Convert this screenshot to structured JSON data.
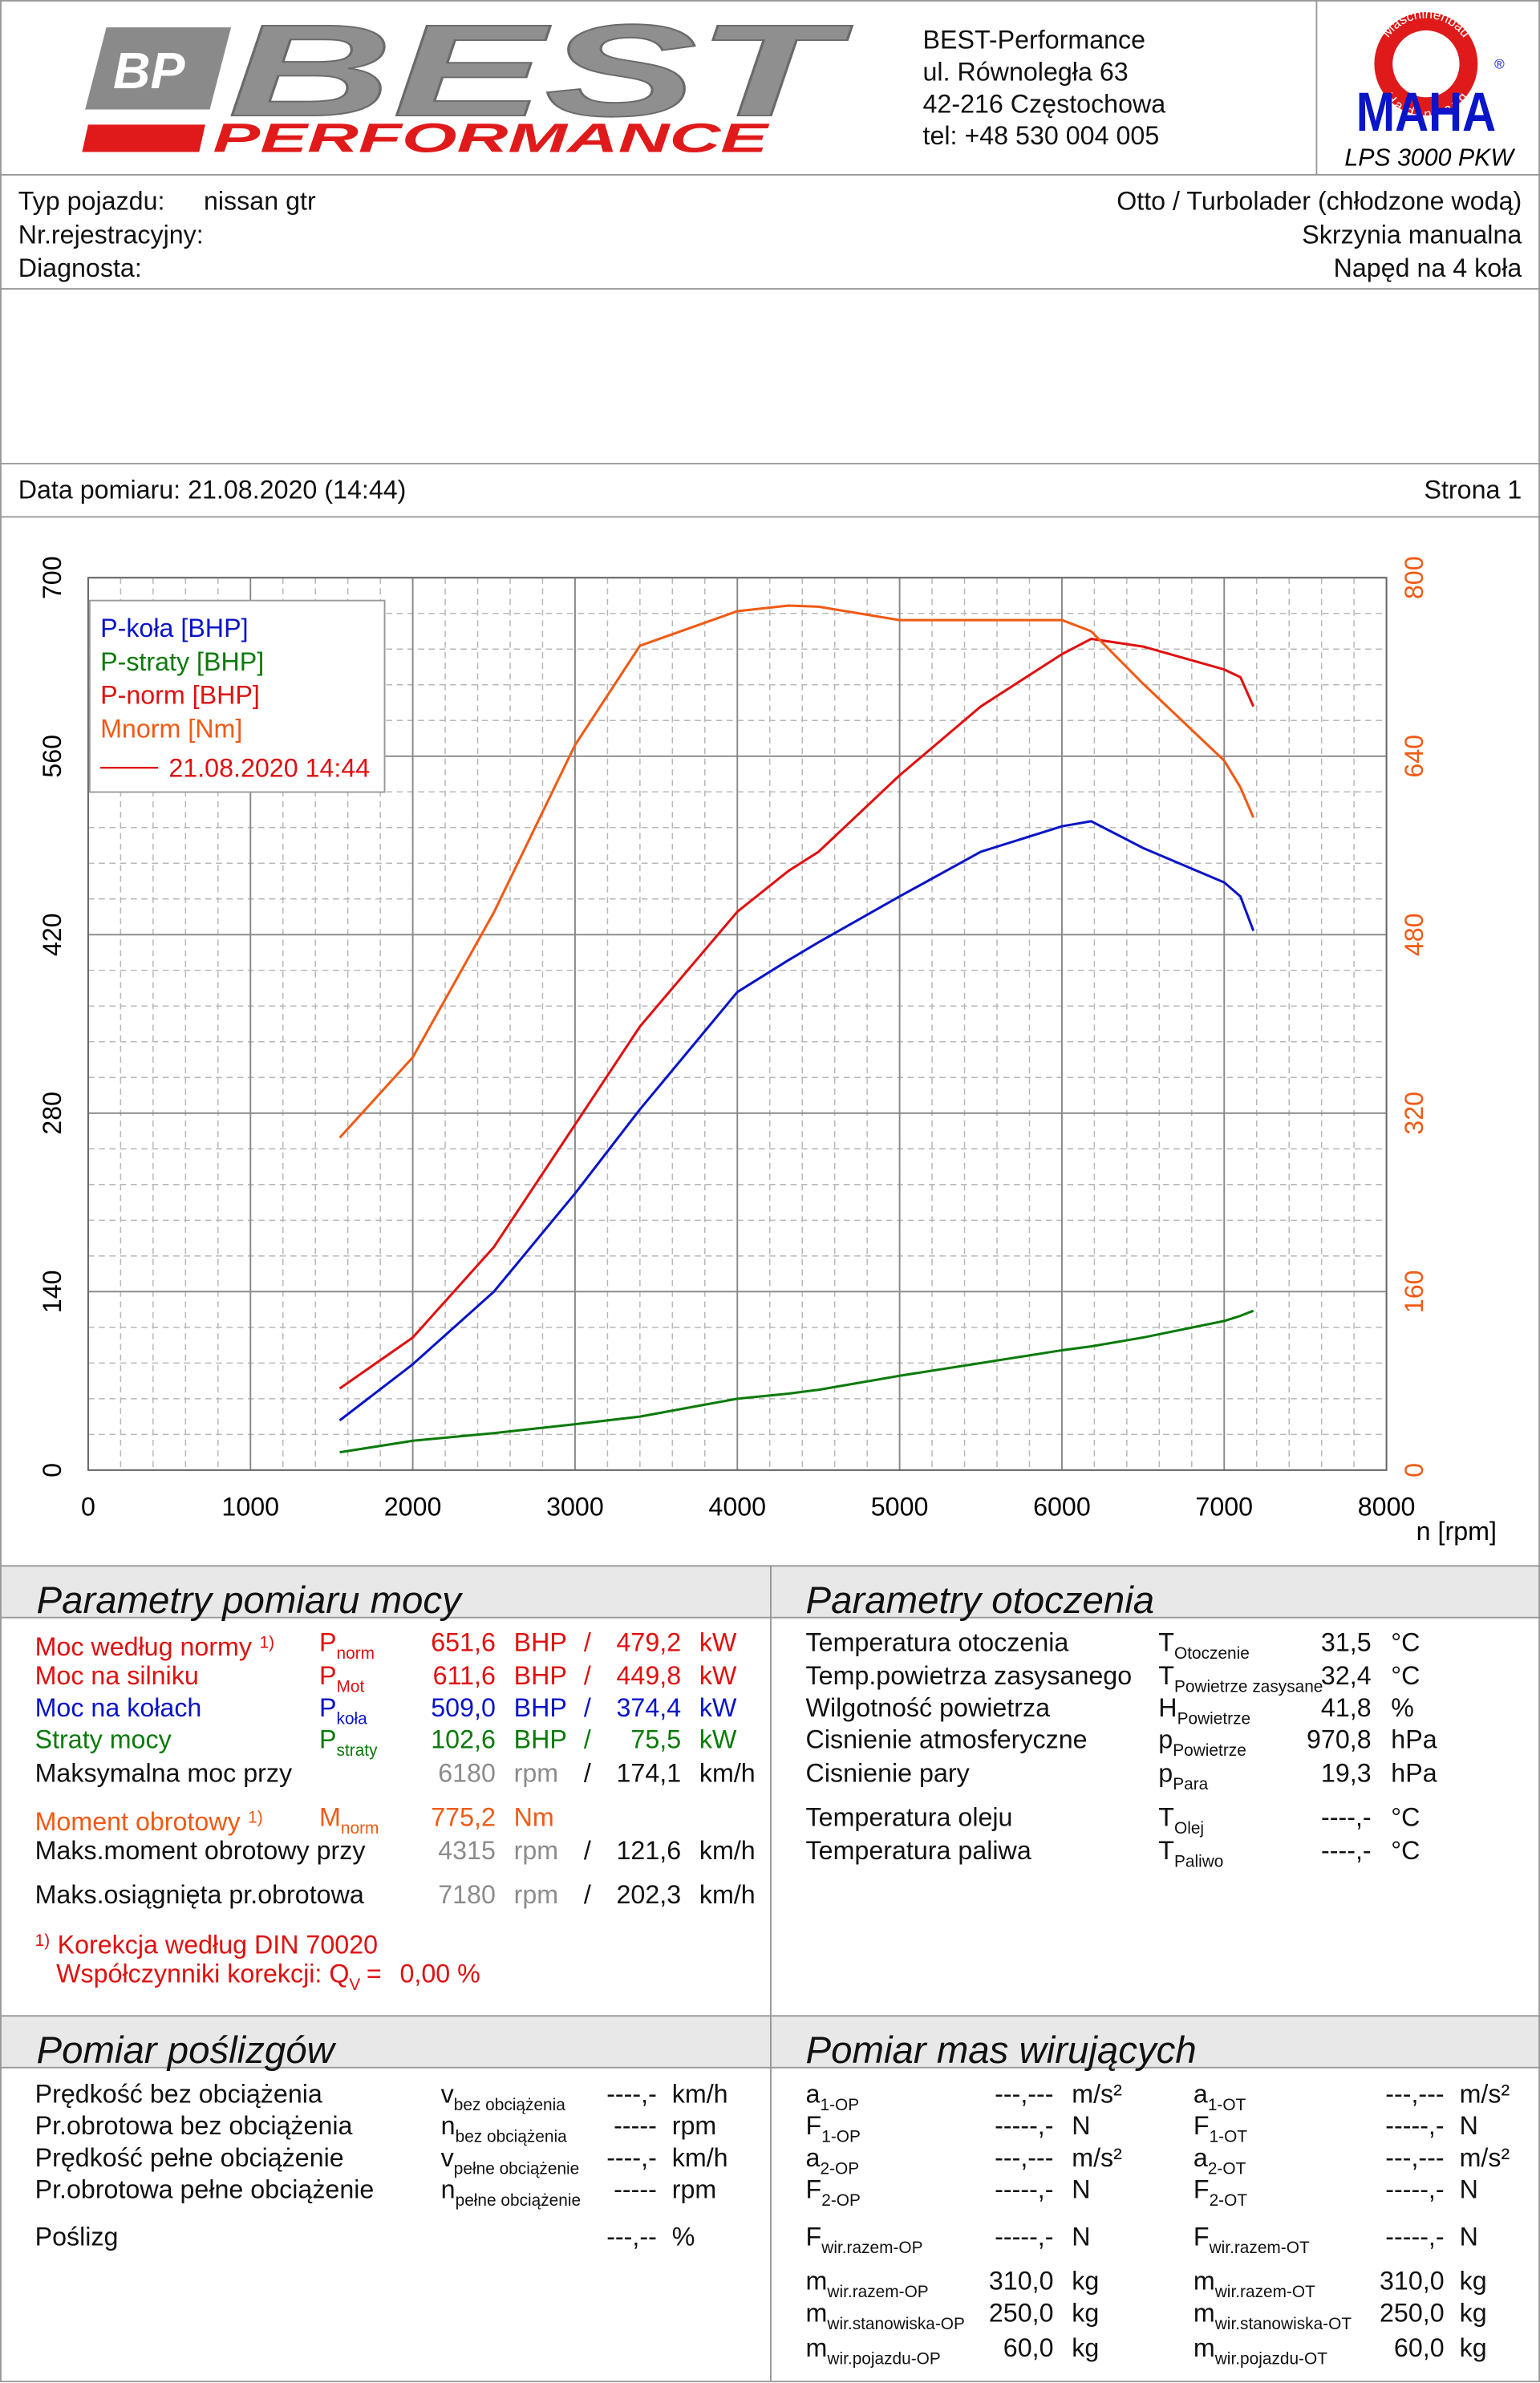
{
  "header": {
    "logo": {
      "mark": "BP",
      "name": "BEST",
      "tagline": "PERFORMANCE"
    },
    "address": [
      "BEST-Performance",
      "ul. Równoległa 63",
      "42-216 Częstochowa",
      "tel: +48 530 004 005"
    ],
    "maha": {
      "ring_top": "Maschinenbau",
      "ring_bottom": "Haldenwang",
      "name": "MAHA",
      "registered": "®",
      "model": "LPS 3000 PKW"
    }
  },
  "vehicle": {
    "type_label": "Typ pojazdu:",
    "type_value": "nissan gtr",
    "registration_label": "Nr.rejestracyjny:",
    "diagnostician_label": "Diagnosta:",
    "engine": "Otto / Turbolader (chłodzone wodą)",
    "gearbox": "Skrzynia manualna",
    "drive": "Napęd na 4 koła"
  },
  "measurement": {
    "date": "Data pomiaru: 21.08.2020 (14:44)",
    "page": "Strona 1"
  },
  "chart_data": {
    "type": "line",
    "x_label": "n [rpm]",
    "xlim": [
      0,
      8000
    ],
    "xticks": [
      0,
      1000,
      2000,
      3000,
      4000,
      5000,
      6000,
      7000,
      8000
    ],
    "ylim": [
      0,
      700
    ],
    "yticks": [
      0,
      140,
      280,
      420,
      560,
      700
    ],
    "y2lim": [
      0,
      800
    ],
    "y2ticks": [
      0,
      160,
      320,
      480,
      640,
      800
    ],
    "y2_color": "#f05a14",
    "grid": true,
    "legend": "upper left",
    "measurement_label": "21.08.2020 14:44",
    "x": [
      1550,
      2000,
      2500,
      3000,
      3400,
      4000,
      4315,
      4500,
      5000,
      5500,
      6000,
      6180,
      6500,
      7000,
      7100,
      7180
    ],
    "series": [
      {
        "name": "P-koła [BHP]",
        "color": "#0a14c8",
        "values": [
          39,
          83,
          140,
          217,
          283,
          375,
          400,
          414,
          450,
          485,
          505,
          509,
          488,
          461,
          450,
          423
        ]
      },
      {
        "name": "P-straty [BHP]",
        "color": "#0a7a0a",
        "values": [
          14,
          23,
          29,
          36,
          42,
          56,
          60,
          63,
          74,
          84,
          94,
          97,
          104,
          117,
          121,
          125
        ]
      },
      {
        "name": "P-norm [BHP]",
        "color": "#e01010",
        "values": [
          64,
          104,
          175,
          271,
          348,
          438,
          470,
          485,
          545,
          599,
          640,
          652,
          646,
          628,
          622,
          599
        ]
      },
      {
        "name": "Mnorm [Nm]",
        "color": "#f05a14",
        "axis": "y2",
        "values": [
          298,
          370,
          500,
          650,
          739,
          770,
          775,
          774,
          762,
          762,
          762,
          752,
          705,
          636,
          612,
          585
        ]
      }
    ]
  },
  "power": {
    "title": "Parametry pomiaru mocy",
    "rows": [
      {
        "label": "Moc według normy",
        "note": "1)",
        "sym": "P",
        "sub": "norm",
        "v1": "651,6",
        "u1": "BHP",
        "sep": "/",
        "v2": "479,2",
        "u2": "kW",
        "color": "#e01010"
      },
      {
        "label": "Moc na silniku",
        "sym": "P",
        "sub": "Mot",
        "v1": "611,6",
        "u1": "BHP",
        "sep": "/",
        "v2": "449,8",
        "u2": "kW",
        "color": "#e01010"
      },
      {
        "label": "Moc na kołach",
        "sym": "P",
        "sub": "koła",
        "v1": "509,0",
        "u1": "BHP",
        "sep": "/",
        "v2": "374,4",
        "u2": "kW",
        "color": "#0a14c8"
      },
      {
        "label": "Straty mocy",
        "sym": "P",
        "sub": "straty",
        "v1": "102,6",
        "u1": "BHP",
        "sep": "/",
        "v2": "75,5",
        "u2": "kW",
        "color": "#0a7a0a"
      },
      {
        "label": "Maksymalna moc przy",
        "v1": "6180",
        "u1": "rpm",
        "sep": "/",
        "v2": "174,1",
        "u2": "km/h",
        "v1_color": "#8c8c8c"
      },
      {
        "label": "Moment obrotowy",
        "note": "1)",
        "sym": "M",
        "sub": "norm",
        "v1": "775,2",
        "u1": "Nm",
        "color": "#f05a14"
      },
      {
        "label": "Maks.moment obrotowy przy",
        "v1": "4315",
        "u1": "rpm",
        "sep": "/",
        "v2": "121,6",
        "u2": "km/h",
        "v1_color": "#8c8c8c"
      },
      {
        "label": "Maks.osiągnięta pr.obrotowa",
        "v1": "7180",
        "u1": "rpm",
        "sep": "/",
        "v2": "202,3",
        "u2": "km/h",
        "v1_color": "#8c8c8c"
      }
    ],
    "footnote": {
      "mark": "1)",
      "text": "Korekcja według DIN 70020",
      "factor_label": "Współczynniki korekcji: Q",
      "factor_sub": "V",
      "factor_eq": "=",
      "factor_value": "0,00 %"
    }
  },
  "environment": {
    "title": "Parametry otoczenia",
    "rows": [
      {
        "label": "Temperatura otoczenia",
        "sym": "T",
        "sub": "Otoczenie",
        "value": "31,5",
        "unit": "°C"
      },
      {
        "label": "Temp.powietrza zasysanego",
        "sym": "T",
        "sub": "Powietrze zasysane",
        "value": "32,4",
        "unit": "°C"
      },
      {
        "label": "Wilgotność powietrza",
        "sym": "H",
        "sub": "Powietrze",
        "value": "41,8",
        "unit": "%"
      },
      {
        "label": "Cisnienie atmosferyczne",
        "sym": "p",
        "sub": "Powietrze",
        "value": "970,8",
        "unit": "hPa"
      },
      {
        "label": "Cisnienie pary",
        "sym": "p",
        "sub": "Para",
        "value": "19,3",
        "unit": "hPa"
      },
      {
        "label": "Temperatura oleju",
        "sym": "T",
        "sub": "Olej",
        "value": "----,-",
        "unit": "°C"
      },
      {
        "label": "Temperatura paliwa",
        "sym": "T",
        "sub": "Paliwo",
        "value": "----,-",
        "unit": "°C"
      }
    ]
  },
  "slip": {
    "title": "Pomiar poślizgów",
    "rows": [
      {
        "label": "Prędkość bez obciążenia",
        "sym": "v",
        "sub": "bez obciążenia",
        "value": "----,-",
        "unit": "km/h"
      },
      {
        "label": "Pr.obrotowa bez obciążenia",
        "sym": "n",
        "sub": "bez obciążenia",
        "value": "-----",
        "unit": "rpm"
      },
      {
        "label": "Prędkość pełne obciążenie",
        "sym": "v",
        "sub": "pełne obciążenie",
        "value": "----,-",
        "unit": "km/h"
      },
      {
        "label": "Pr.obrotowa pełne obciążenie",
        "sym": "n",
        "sub": "pełne obciążenie",
        "value": "-----",
        "unit": "rpm"
      },
      {
        "label": "Poślizg",
        "value": "---,--",
        "unit": "%"
      }
    ]
  },
  "masses": {
    "title": "Pomiar mas wirujących",
    "columns": [
      [
        {
          "sym": "a",
          "sub": "1-OP",
          "value": "---,---",
          "unit": "m/s²"
        },
        {
          "sym": "F",
          "sub": "1-OP",
          "value": "-----,-",
          "unit": "N"
        },
        {
          "sym": "a",
          "sub": "2-OP",
          "value": "---,---",
          "unit": "m/s²"
        },
        {
          "sym": "F",
          "sub": "2-OP",
          "value": "-----,-",
          "unit": "N"
        },
        {
          "sym": "F",
          "sub": "wir.razem-OP",
          "value": "-----,-",
          "unit": "N"
        },
        {
          "sym": "m",
          "sub": "wir.razem-OP",
          "value": "310,0",
          "unit": "kg"
        },
        {
          "sym": "m",
          "sub": "wir.stanowiska-OP",
          "value": "250,0",
          "unit": "kg"
        },
        {
          "sym": "m",
          "sub": "wir.pojazdu-OP",
          "value": "60,0",
          "unit": "kg"
        }
      ],
      [
        {
          "sym": "a",
          "sub": "1-OT",
          "value": "---,---",
          "unit": "m/s²"
        },
        {
          "sym": "F",
          "sub": "1-OT",
          "value": "-----,-",
          "unit": "N"
        },
        {
          "sym": "a",
          "sub": "2-OT",
          "value": "---,---",
          "unit": "m/s²"
        },
        {
          "sym": "F",
          "sub": "2-OT",
          "value": "-----,-",
          "unit": "N"
        },
        {
          "sym": "F",
          "sub": "wir.razem-OT",
          "value": "-----,-",
          "unit": "N"
        },
        {
          "sym": "m",
          "sub": "wir.razem-OT",
          "value": "310,0",
          "unit": "kg"
        },
        {
          "sym": "m",
          "sub": "wir.stanowiska-OT",
          "value": "250,0",
          "unit": "kg"
        },
        {
          "sym": "m",
          "sub": "wir.pojazdu-OT",
          "value": "60,0",
          "unit": "kg"
        }
      ]
    ]
  }
}
